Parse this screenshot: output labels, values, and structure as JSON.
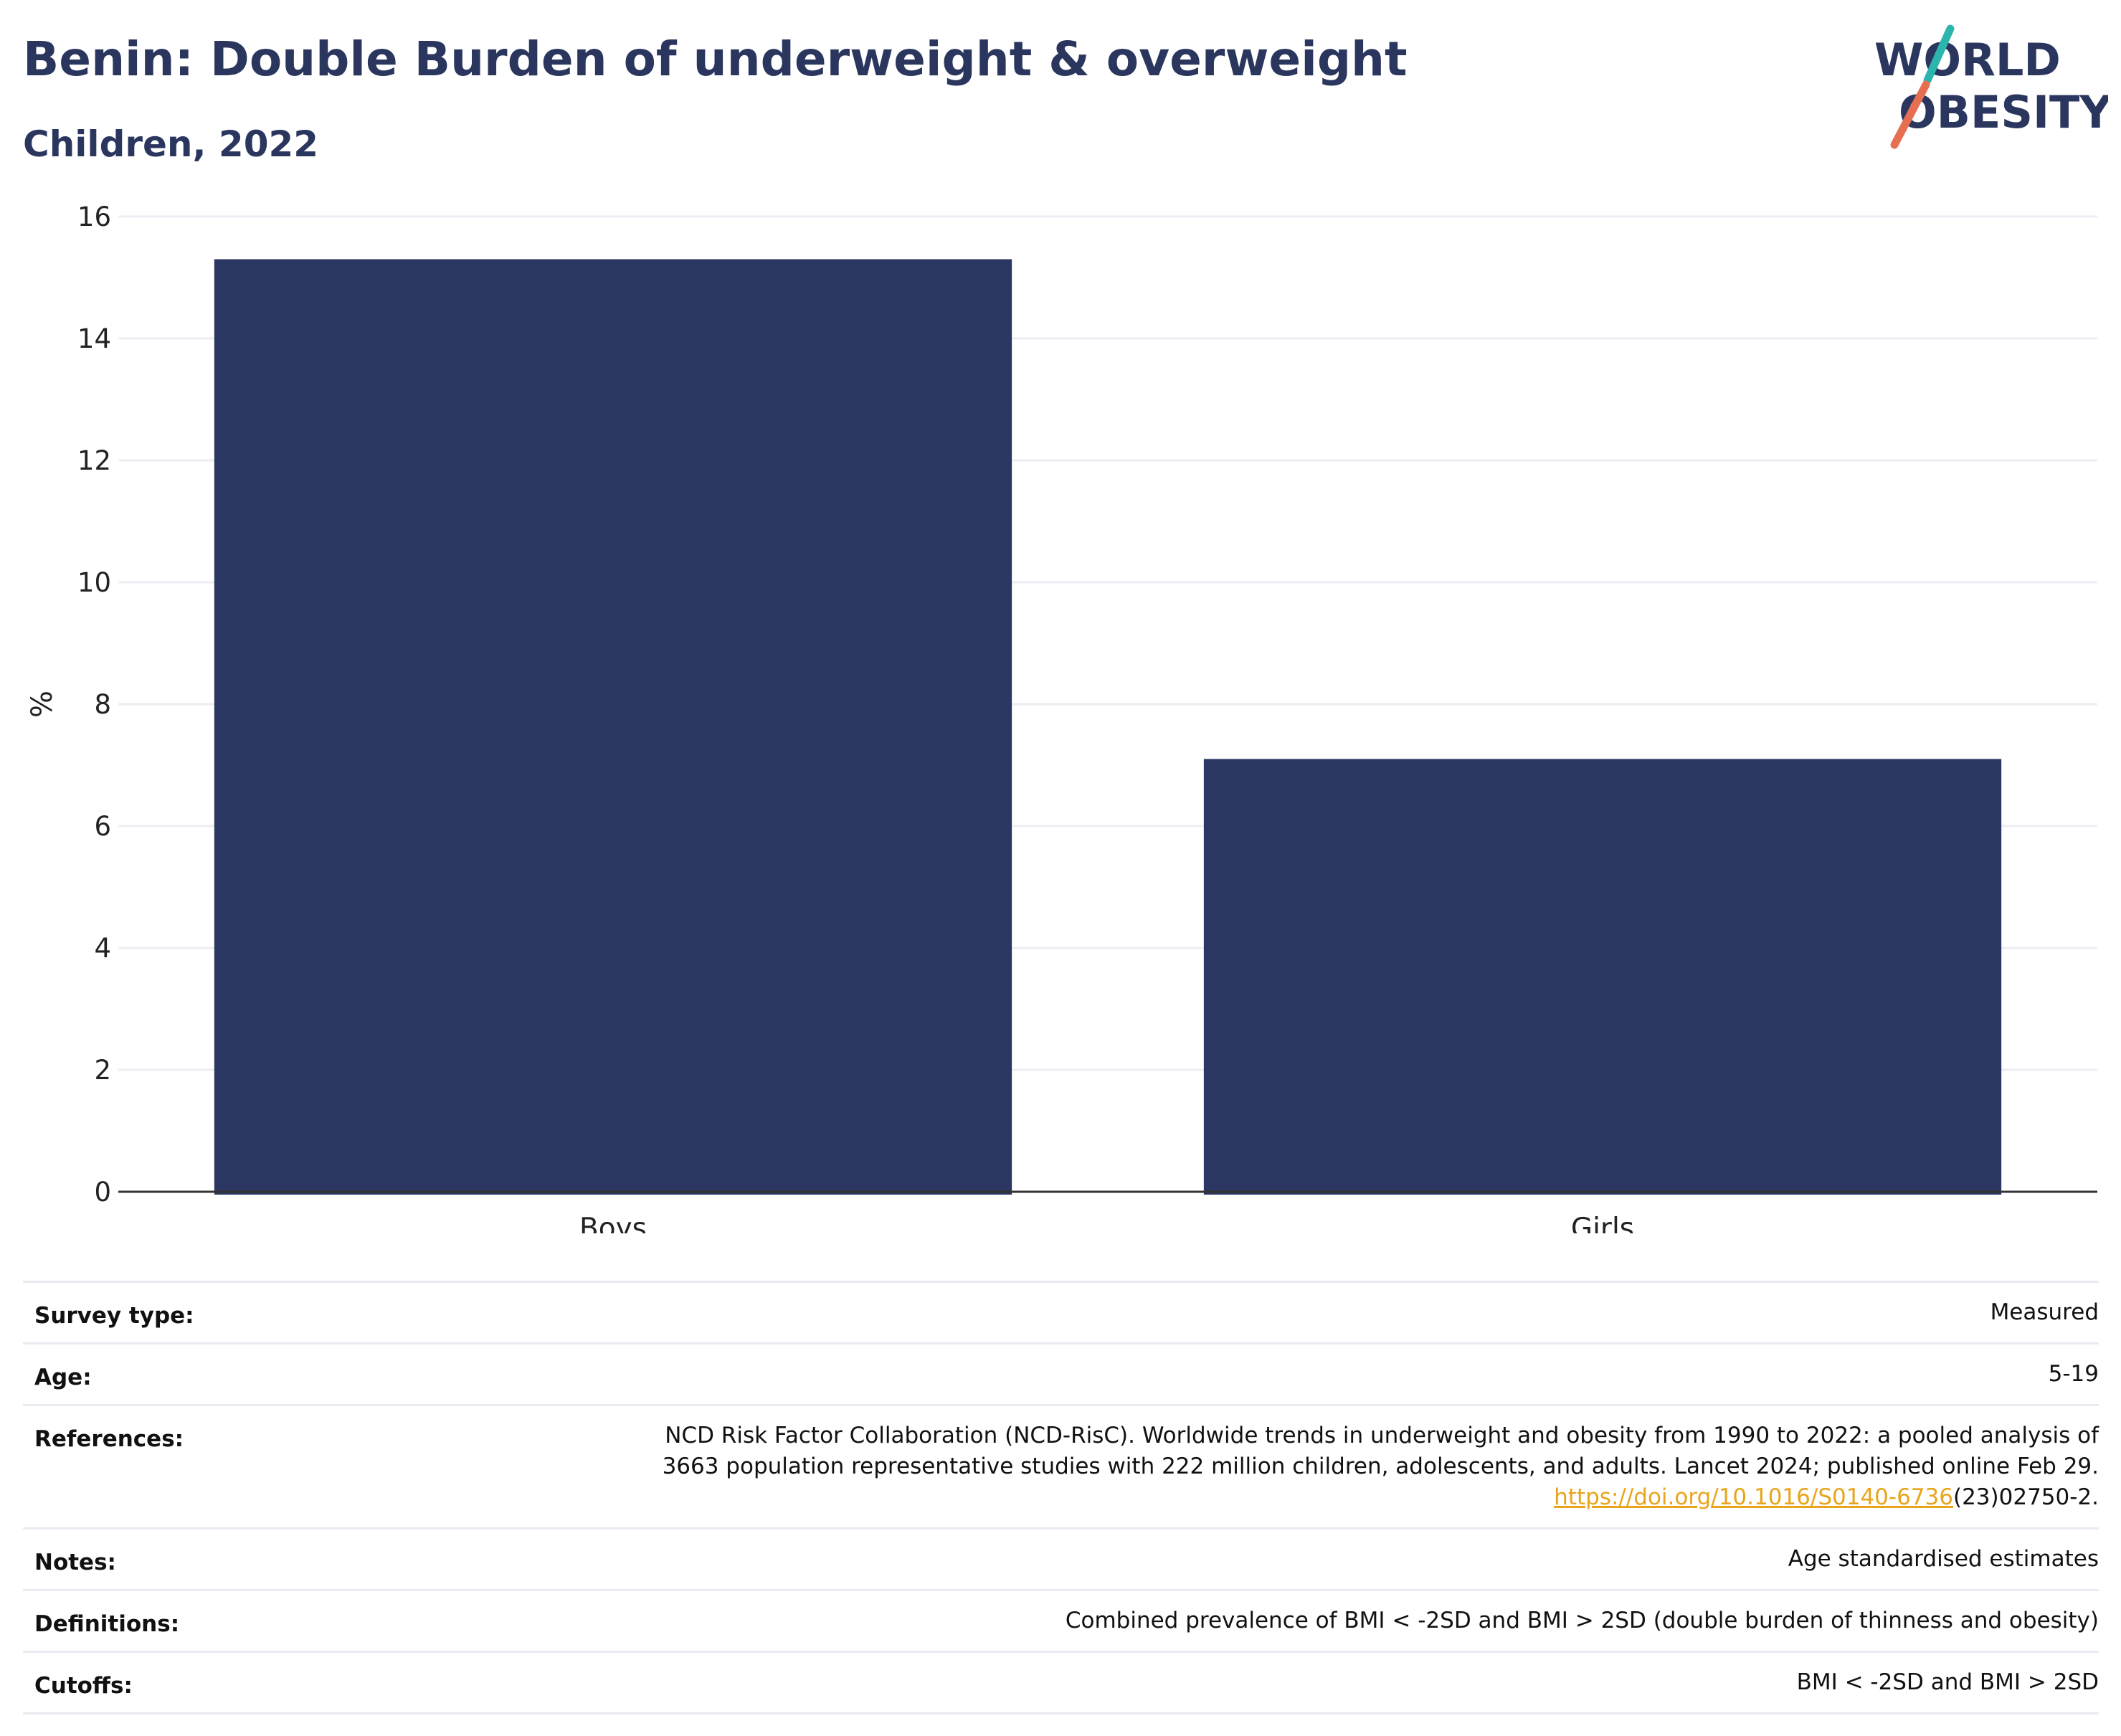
{
  "header": {
    "title": "Benin: Double Burden of underweight & overweight",
    "subtitle": "Children, 2022"
  },
  "logo": {
    "line1": "WORLD",
    "line2": "OBESITY",
    "slash_top_color": "#2bb5ad",
    "slash_bottom_color": "#e76f51",
    "text_color": "#2b365f"
  },
  "colors": {
    "bar": "#2b3662",
    "text": "#2b365f",
    "link": "#e8a51c",
    "grid": "#eceef3",
    "axis": "#333333"
  },
  "chart_data": {
    "type": "bar",
    "categories": [
      "Boys",
      "Girls"
    ],
    "values": [
      15.3,
      7.1
    ],
    "ylabel": "%",
    "ylim": [
      0,
      16
    ],
    "yticks": [
      0,
      2,
      4,
      6,
      8,
      10,
      12,
      14,
      16
    ],
    "grid": true,
    "legend": "none"
  },
  "info": [
    {
      "key": "Survey type:",
      "lines": [
        "Measured"
      ]
    },
    {
      "key": "Age:",
      "lines": [
        "5-19"
      ]
    },
    {
      "key": "References:",
      "lines": [
        "NCD Risk Factor Collaboration (NCD-RisC). Worldwide trends in underweight and obesity from 1990 to 2022: a pooled analysis of",
        "3663 population representative studies with 222 million children, adolescents, and adults. Lancet 2024; published online Feb 29."
      ],
      "link_text": "https://doi.org/10.1016/S0140-6736",
      "link_suffix": "(23)02750-2."
    },
    {
      "key": "Notes:",
      "lines": [
        "Age standardised estimates"
      ]
    },
    {
      "key": "Definitions:",
      "lines": [
        "Combined prevalence of BMI < -2SD and BMI > 2SD (double burden of thinness and obesity)"
      ]
    },
    {
      "key": "Cutoffs:",
      "lines": [
        "BMI < -2SD and BMI > 2SD"
      ]
    }
  ]
}
